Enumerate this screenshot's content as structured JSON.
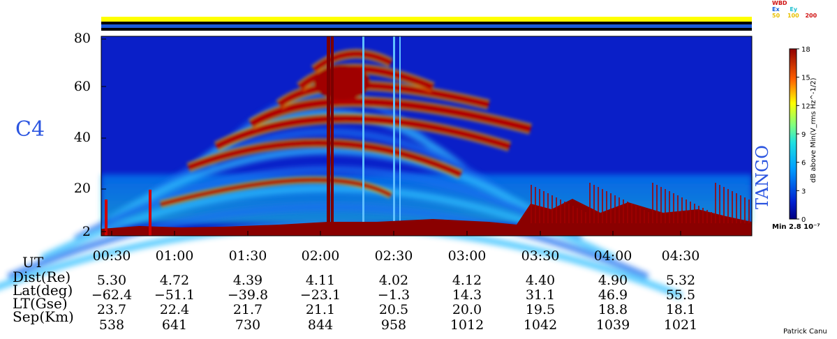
{
  "chart_data": {
    "type": "heatmap",
    "spacecraft": "C4",
    "instrument": "TANGO",
    "colorbar": {
      "label": "dB above Min(V_rms Hz^-1/2)",
      "ticks": [
        0,
        3,
        6,
        9,
        12,
        15,
        18
      ],
      "min_text": "Min 2.8 10⁻⁷"
    },
    "y_axis": {
      "ticks": [
        "2",
        "20",
        "40",
        "60",
        "80"
      ],
      "ylim": [
        2,
        80
      ]
    },
    "x_axis": {
      "row_label": "UT",
      "ticks": [
        "00:30",
        "01:00",
        "01:30",
        "02:00",
        "02:30",
        "03:00",
        "03:30",
        "04:00",
        "04:30"
      ]
    },
    "ephemeris": [
      {
        "label": "Dist(Re)",
        "values": [
          "5.30",
          "4.72",
          "4.39",
          "4.11",
          "4.02",
          "4.12",
          "4.40",
          "4.90",
          "5.32"
        ]
      },
      {
        "label": "Lat(deg)",
        "values": [
          "−62.4",
          "−51.1",
          "−39.8",
          "−23.1",
          "−1.3",
          "14.3",
          "31.1",
          "46.9",
          "55.5"
        ]
      },
      {
        "label": "LT(Gse)",
        "values": [
          "23.7",
          "22.4",
          "21.7",
          "21.1",
          "20.5",
          "20.0",
          "19.5",
          "18.8",
          "18.1"
        ]
      },
      {
        "label": "Sep(Km)",
        "values": [
          "538",
          "641",
          "730",
          "844",
          "958",
          "1012",
          "1042",
          "1039",
          "1021"
        ]
      }
    ],
    "mode_legend": {
      "row1": "WBD",
      "row2": [
        "Ex",
        "Ey"
      ],
      "row3": [
        "50",
        "100",
        "200"
      ]
    },
    "credit": "Patrick Canu"
  },
  "colors": {
    "label_blue": "#2b55e0",
    "legend_red": "#d01010",
    "legend_blue": "#1060e0",
    "legend_cyan": "#20c0d0",
    "legend_yellow": "#e8c000"
  }
}
